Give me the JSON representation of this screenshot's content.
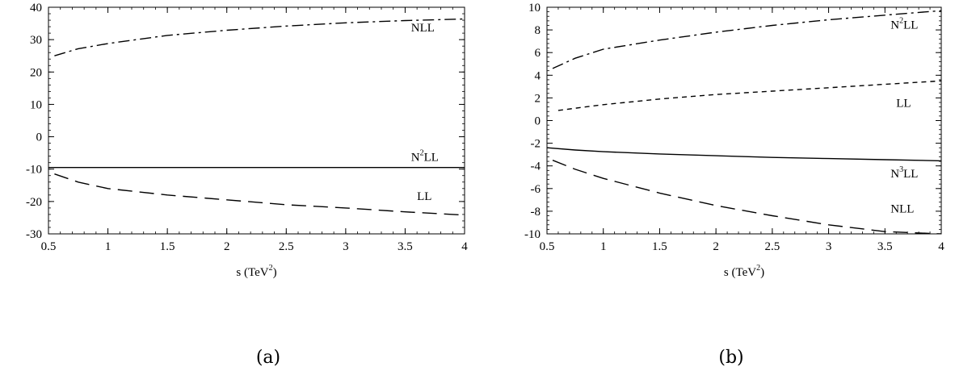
{
  "chart_data": [
    {
      "type": "line",
      "caption": "(a)",
      "xlabel": "s (TeV",
      "xlabel_sup": "2",
      "xlabel_end": ")",
      "xlim": [
        0.5,
        4
      ],
      "ylim": [
        -30,
        40
      ],
      "xticks": [
        0.5,
        1,
        1.5,
        2,
        2.5,
        3,
        3.5,
        4
      ],
      "xtick_labels": [
        "0.5",
        "1",
        "1.5",
        "2",
        "2.5",
        "3",
        "3.5",
        "4"
      ],
      "yticks": [
        -30,
        -20,
        -10,
        0,
        10,
        20,
        30,
        40
      ],
      "ytick_labels": [
        "-30",
        "-20",
        "-10",
        "0",
        "10",
        "20",
        "30",
        "40"
      ],
      "series": [
        {
          "label": "NLL",
          "label_sup": "",
          "label_end": "",
          "style": "dashdot",
          "label_at": [
            3.55,
            32.5
          ],
          "x": [
            0.55,
            0.75,
            1,
            1.5,
            2,
            2.5,
            3,
            3.5,
            4
          ],
          "y": [
            25,
            27.2,
            28.8,
            31.3,
            32.9,
            34.2,
            35.2,
            35.9,
            36.4
          ]
        },
        {
          "label": "N",
          "label_sup": "2",
          "label_end": "LL",
          "style": "solid",
          "label_at": [
            3.55,
            -7.5
          ],
          "x": [
            0.5,
            4
          ],
          "y": [
            -9.5,
            -9.5
          ]
        },
        {
          "label": "LL",
          "label_sup": "",
          "label_end": "",
          "style": "longdash",
          "label_at": [
            3.6,
            -19.5
          ],
          "x": [
            0.55,
            0.75,
            1,
            1.5,
            2,
            2.5,
            3,
            3.5,
            4
          ],
          "y": [
            -11.5,
            -14,
            -16,
            -18,
            -19.5,
            -21,
            -22,
            -23.2,
            -24.2
          ]
        }
      ]
    },
    {
      "type": "line",
      "caption": "(b)",
      "xlabel": "s (TeV",
      "xlabel_sup": "2",
      "xlabel_end": ")",
      "xlim": [
        0.5,
        4
      ],
      "ylim": [
        -10,
        10
      ],
      "xticks": [
        0.5,
        1,
        1.5,
        2,
        2.5,
        3,
        3.5,
        4
      ],
      "xtick_labels": [
        "0.5",
        "1",
        "1.5",
        "2",
        "2.5",
        "3",
        "3.5",
        "4"
      ],
      "yticks": [
        -10,
        -8,
        -6,
        -4,
        -2,
        0,
        2,
        4,
        6,
        8,
        10
      ],
      "ytick_labels": [
        "-10",
        "-8",
        "-6",
        "-4",
        "-2",
        "0",
        "2",
        "4",
        "6",
        "8",
        "10"
      ],
      "series": [
        {
          "label": "N",
          "label_sup": "2",
          "label_end": "LL",
          "style": "dashdot",
          "label_at": [
            3.55,
            8.1
          ],
          "x": [
            0.55,
            0.75,
            1,
            1.5,
            2,
            2.5,
            3,
            3.5,
            4
          ],
          "y": [
            4.6,
            5.5,
            6.3,
            7.1,
            7.8,
            8.4,
            8.9,
            9.3,
            9.7
          ]
        },
        {
          "label": "LL",
          "label_sup": "",
          "label_end": "",
          "style": "dash",
          "label_at": [
            3.6,
            1.2
          ],
          "x": [
            0.6,
            1,
            1.5,
            2,
            2.5,
            3,
            3.5,
            4
          ],
          "y": [
            0.9,
            1.4,
            1.9,
            2.3,
            2.6,
            2.9,
            3.2,
            3.5
          ]
        },
        {
          "label": "N",
          "label_sup": "3",
          "label_end": "LL",
          "style": "solid",
          "label_at": [
            3.55,
            -5.0
          ],
          "x": [
            0.5,
            0.75,
            1,
            1.5,
            2,
            2.5,
            3,
            3.5,
            4
          ],
          "y": [
            -2.4,
            -2.6,
            -2.75,
            -2.95,
            -3.1,
            -3.25,
            -3.35,
            -3.45,
            -3.55
          ]
        },
        {
          "label": "NLL",
          "label_sup": "",
          "label_end": "",
          "style": "longdash",
          "label_at": [
            3.55,
            -8.1
          ],
          "x": [
            0.55,
            0.75,
            1,
            1.5,
            2,
            2.5,
            3,
            3.5,
            4
          ],
          "y": [
            -3.5,
            -4.3,
            -5.1,
            -6.4,
            -7.5,
            -8.4,
            -9.2,
            -9.8,
            -10
          ]
        }
      ]
    }
  ]
}
